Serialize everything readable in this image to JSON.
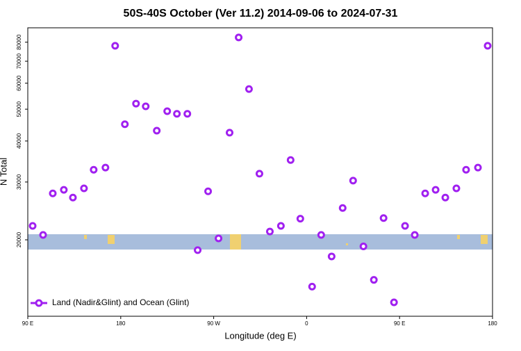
{
  "chart_data": {
    "type": "scatter",
    "title": "50S-40S October (Ver 11.2)   2014-09-06 to 2024-07-31",
    "x_label": "Longitude (deg E)",
    "y_label": "N Total",
    "xlim": [
      90,
      540
    ],
    "ylim": [
      11700,
      88500
    ],
    "log_y": true,
    "legend_loc": "lower left",
    "xticks": [
      {
        "value": 90,
        "label": "90 E"
      },
      {
        "value": 180,
        "label": "180"
      },
      {
        "value": 270,
        "label": "90 W"
      },
      {
        "value": 360,
        "label": "0"
      },
      {
        "value": 450,
        "label": "90 E"
      },
      {
        "value": 540,
        "label": "180"
      }
    ],
    "yticks": [
      20000,
      30000,
      40000,
      50000,
      60000,
      70000,
      80000
    ],
    "series": [
      {
        "name": "Land (Nadir&Glint) and Ocean (Glint)",
        "color": "#a020f0",
        "x": [
          94.7,
          104.8,
          114.2,
          124.9,
          133.7,
          144.4,
          153.8,
          165.2,
          174.6,
          184.0,
          194.8,
          204.2,
          214.9,
          225.0,
          234.4,
          244.5,
          254.5,
          264.6,
          274.7,
          285.4,
          294.2,
          304.2,
          314.3,
          324.4,
          335.1,
          344.5,
          353.9,
          365.3,
          374.1,
          384.2,
          394.9,
          405.0,
          415.0,
          425.1,
          434.5,
          444.6,
          455.3,
          464.7,
          474.8,
          484.9,
          494.3,
          505.0,
          514.4,
          525.9,
          535.3
        ],
        "values": [
          22050,
          20700,
          27700,
          28400,
          26900,
          28700,
          32700,
          33200,
          78000,
          45000,
          52000,
          51000,
          43000,
          49300,
          48400,
          48400,
          18600,
          28100,
          20200,
          42400,
          82700,
          57600,
          31800,
          21200,
          22050,
          35000,
          23200,
          14400,
          20700,
          17800,
          25000,
          30300,
          19100,
          15100,
          23300,
          12900,
          22050,
          20700,
          27700,
          28400,
          26900,
          28700,
          32700,
          33200,
          78000
        ]
      }
    ]
  }
}
